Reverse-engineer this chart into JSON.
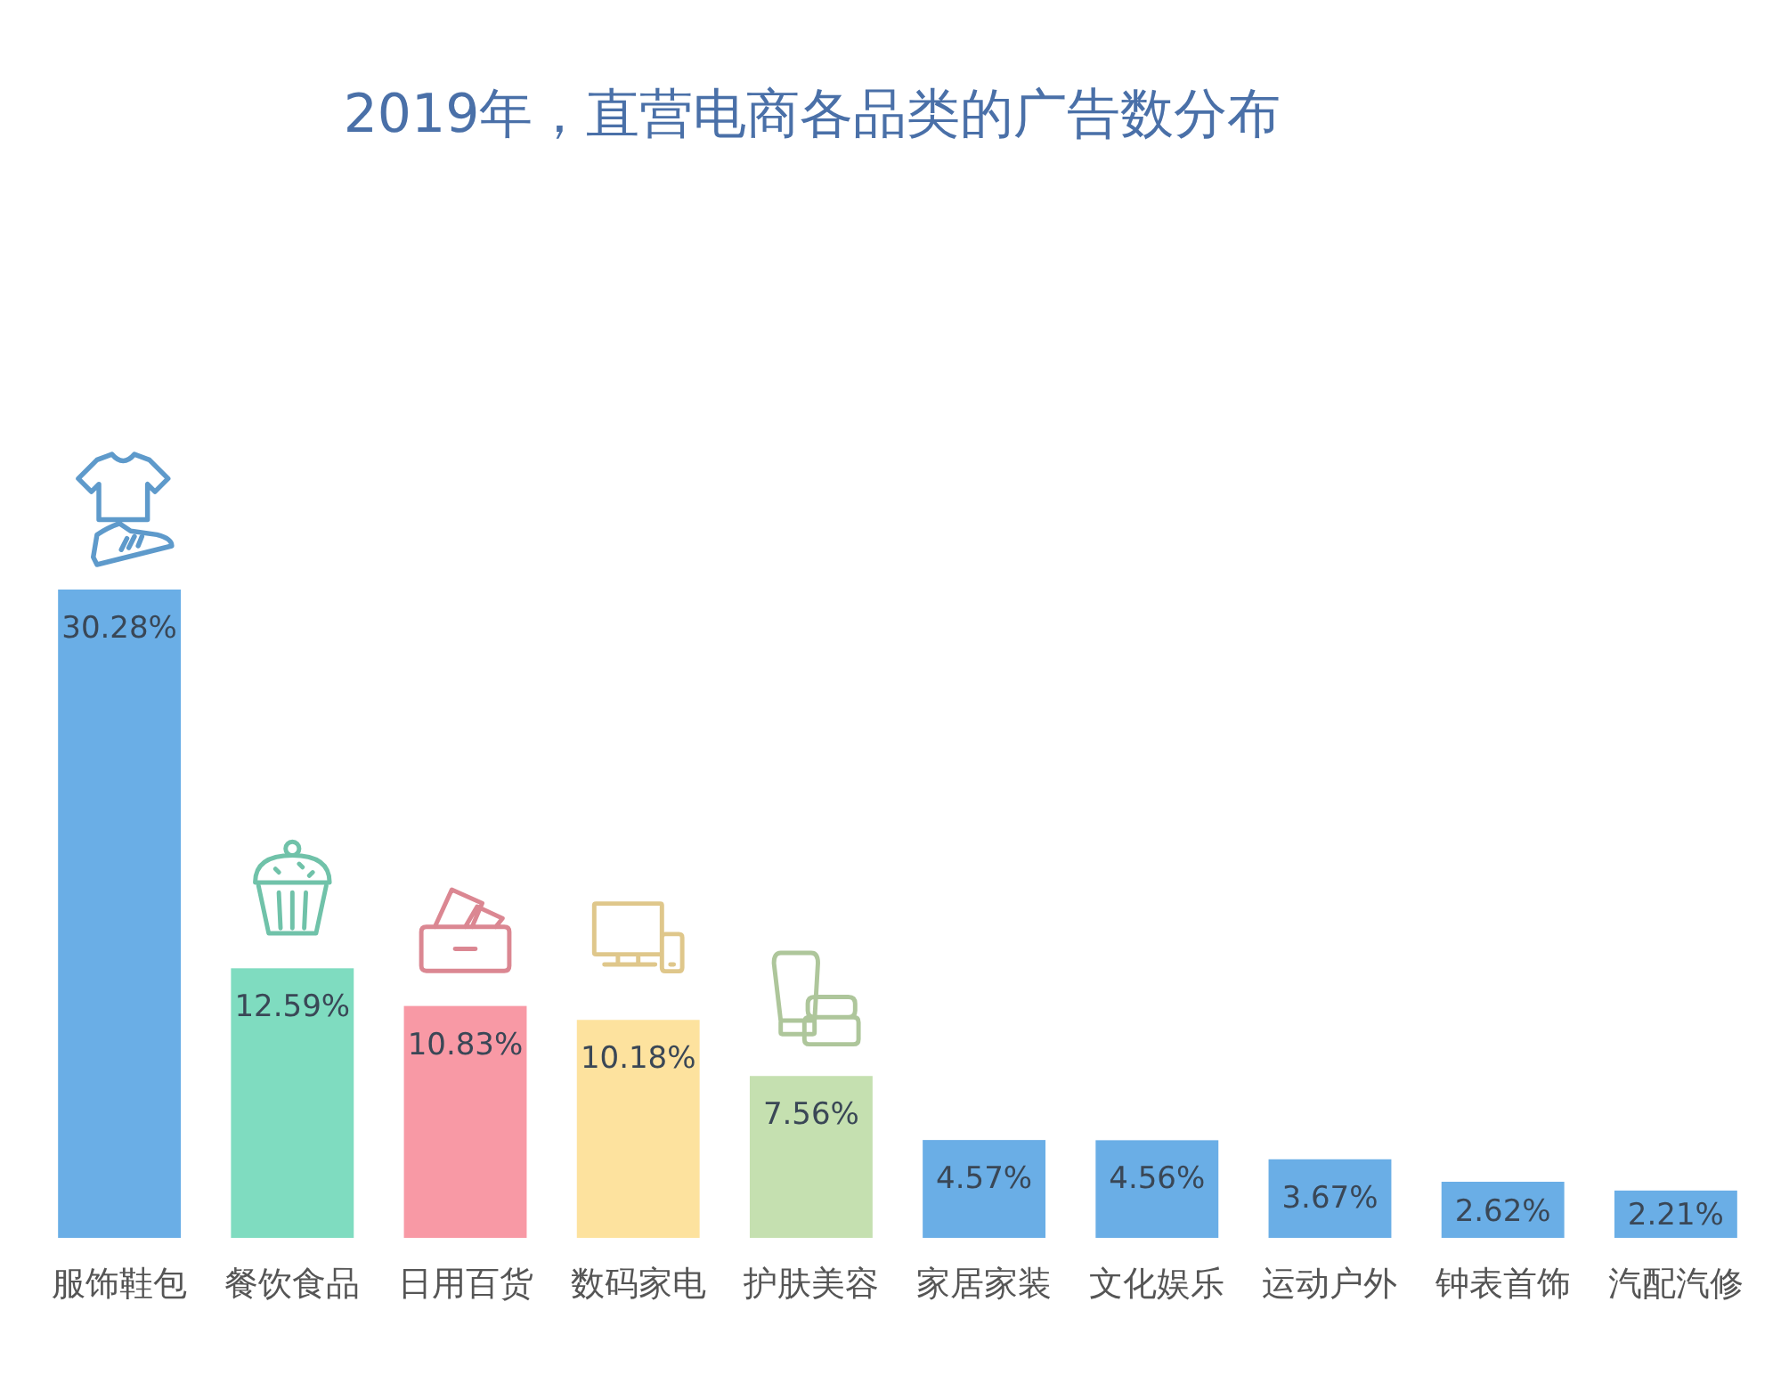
{
  "chart_data": {
    "type": "bar",
    "title": "2019年，直营电商各品类的广告数分布",
    "categories": [
      "服饰鞋包",
      "餐饮食品",
      "日用百货",
      "数码家电",
      "护肤美容",
      "家居家装",
      "文化娱乐",
      "运动户外",
      "钟表首饰",
      "汽配汽修"
    ],
    "values": [
      30.28,
      12.59,
      10.83,
      10.18,
      7.56,
      4.57,
      4.56,
      3.67,
      2.62,
      2.21
    ],
    "colors": [
      "#6aaee6",
      "#7fdcc0",
      "#f899a5",
      "#fde29e",
      "#c5e0b0",
      "#6aaee6",
      "#6aaee6",
      "#6aaee6",
      "#6aaee6",
      "#6aaee6"
    ],
    "value_labels": [
      "30.28%",
      "12.59%",
      "10.83%",
      "10.18%",
      "7.56%",
      "4.57%",
      "4.56%",
      "3.67%",
      "2.62%",
      "2.21%"
    ]
  }
}
